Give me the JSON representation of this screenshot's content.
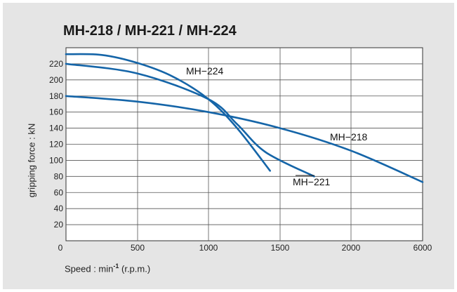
{
  "chart_data": {
    "type": "line",
    "title": "MH-218 / MH-221 / MH-224",
    "ylabel": "gripping force : kN",
    "xlabel_prefix": "Speed : min",
    "xlabel_exponent": "-1",
    "xlabel_suffix": " (r.p.m.)",
    "x_ticks": [
      "0",
      "500",
      "1000",
      "1500",
      "2000",
      "6000"
    ],
    "y_ticks": [
      "20",
      "40",
      "60",
      "80",
      "100",
      "120",
      "140",
      "160",
      "180",
      "200",
      "220"
    ],
    "ylim": [
      0,
      240
    ],
    "grid": true,
    "series": [
      {
        "name": "MH−218",
        "color": "#1565a8",
        "points": [
          [
            0,
            180
          ],
          [
            500,
            173
          ],
          [
            1000,
            160
          ],
          [
            1500,
            140
          ],
          [
            2000,
            112
          ],
          [
            6000,
            73
          ]
        ]
      },
      {
        "name": "MH−221",
        "color": "#1565a8",
        "points": [
          [
            0,
            220
          ],
          [
            500,
            208
          ],
          [
            1000,
            176
          ],
          [
            1200,
            145
          ],
          [
            1400,
            110
          ],
          [
            1740,
            80
          ]
        ]
      },
      {
        "name": "MH−224",
        "color": "#1565a8",
        "points": [
          [
            0,
            232
          ],
          [
            250,
            231
          ],
          [
            500,
            221
          ],
          [
            750,
            204
          ],
          [
            1000,
            176
          ],
          [
            1200,
            140
          ],
          [
            1430,
            87
          ]
        ]
      }
    ]
  }
}
